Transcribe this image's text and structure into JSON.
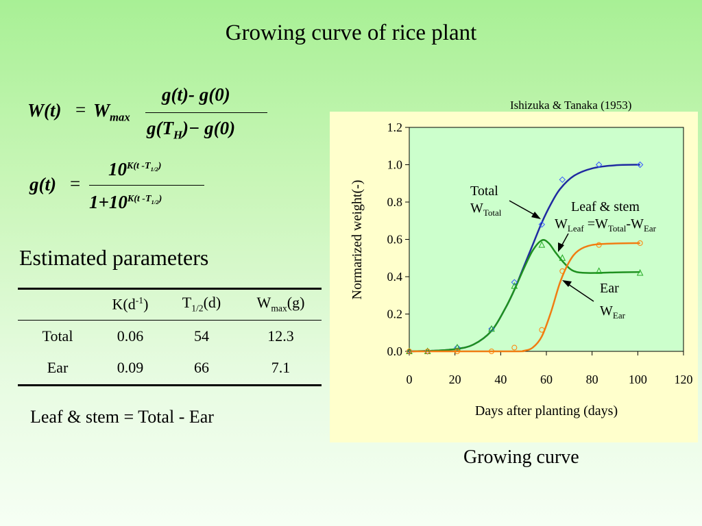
{
  "slide": {
    "title": "Growing curve of rice plant"
  },
  "formulas": {
    "w_lhs": "W(t)",
    "equals": "=",
    "w_max": "W",
    "w_max_sub": "max",
    "w_num": "g(t)- g(0)",
    "w_den_a": "g(T",
    "w_den_sub": "H",
    "w_den_b": ")− g(0)",
    "g_lhs": "g(t)",
    "g_num_base": "10",
    "g_exp": "K(t -T",
    "g_exp_sub": "1/2",
    "g_exp_close": ")",
    "g_den_one": "1+",
    "g_den_base": "10",
    "g_den_exp": "K(t -T",
    "g_den_exp_sub": "1/2",
    "g_den_exp_close": ")"
  },
  "params": {
    "heading": "Estimated parameters",
    "col1_a": "K(d",
    "col1_sup": "-1",
    "col1_b": ")",
    "col2_a": "T",
    "col2_sub": "1/2",
    "col2_b": "(d)",
    "col3_a": "W",
    "col3_sub": "max",
    "col3_b": "(g)",
    "rows": [
      {
        "label": "Total",
        "k": "0.06",
        "t": "54",
        "w": "12.3"
      },
      {
        "label": "Ear",
        "k": "0.09",
        "t": "66",
        "w": "7.1"
      }
    ]
  },
  "leaf_equation": "Leaf & stem = Total - Ear",
  "citation": "Ishizuka & Tanaka (1953)",
  "caption": "Growing curve",
  "colors": {
    "plot_background": "#ccffcc",
    "panel_background": "#ffffcc",
    "total": "#1f2aa0",
    "leaf_stem": "#1f9020",
    "ear": "#f07c12",
    "total_marker": "#3355ff",
    "leaf_marker": "#22aa22",
    "ear_marker": "#ff7f00"
  },
  "chart_data": {
    "type": "line",
    "xlabel": "Days after planting (days)",
    "ylabel": "Normarized weight(-)",
    "xlim": [
      0,
      120
    ],
    "ylim": [
      0.0,
      1.2
    ],
    "x_ticks": [
      "0",
      "20",
      "40",
      "60",
      "80",
      "100",
      "120"
    ],
    "y_ticks": [
      "0.0",
      "0.2",
      "0.4",
      "0.6",
      "0.8",
      "1.0",
      "1.2"
    ],
    "grid": false,
    "legend": "none",
    "series": [
      {
        "name": "Total",
        "color": "#1f2aa0",
        "marker": "diamond",
        "points": [
          [
            0,
            0.0
          ],
          [
            8,
            0.0
          ],
          [
            21,
            0.02
          ],
          [
            36,
            0.12
          ],
          [
            46,
            0.37
          ],
          [
            58,
            0.68
          ],
          [
            67,
            0.92
          ],
          [
            83,
            1.0
          ],
          [
            101,
            1.0
          ]
        ],
        "curve": [
          [
            0,
            0.0
          ],
          [
            10,
            0.003
          ],
          [
            20,
            0.012
          ],
          [
            28,
            0.036
          ],
          [
            36,
            0.11
          ],
          [
            42,
            0.23
          ],
          [
            46,
            0.33
          ],
          [
            50,
            0.45
          ],
          [
            54,
            0.57
          ],
          [
            58,
            0.69
          ],
          [
            62,
            0.79
          ],
          [
            66,
            0.87
          ],
          [
            72,
            0.94
          ],
          [
            80,
            0.98
          ],
          [
            90,
            0.997
          ],
          [
            101,
            1.0
          ]
        ]
      },
      {
        "name": "Leaf & stem",
        "color": "#1f9020",
        "marker": "triangle",
        "points": [
          [
            0,
            0.0
          ],
          [
            8,
            0.0
          ],
          [
            21,
            0.02
          ],
          [
            36,
            0.12
          ],
          [
            46,
            0.35
          ],
          [
            58,
            0.57
          ],
          [
            67,
            0.5
          ],
          [
            83,
            0.43
          ],
          [
            101,
            0.42
          ]
        ],
        "curve": [
          [
            0,
            0.0
          ],
          [
            10,
            0.003
          ],
          [
            20,
            0.012
          ],
          [
            28,
            0.036
          ],
          [
            36,
            0.11
          ],
          [
            42,
            0.23
          ],
          [
            46,
            0.33
          ],
          [
            50,
            0.44
          ],
          [
            54,
            0.54
          ],
          [
            58,
            0.595
          ],
          [
            61,
            0.58
          ],
          [
            64,
            0.53
          ],
          [
            68,
            0.47
          ],
          [
            72,
            0.43
          ],
          [
            78,
            0.42
          ],
          [
            90,
            0.423
          ],
          [
            101,
            0.425
          ]
        ]
      },
      {
        "name": "Ear",
        "color": "#f07c12",
        "marker": "circle",
        "points": [
          [
            0,
            0.0
          ],
          [
            8,
            0.0
          ],
          [
            21,
            0.0
          ],
          [
            36,
            0.0
          ],
          [
            46,
            0.02
          ],
          [
            58,
            0.115
          ],
          [
            67,
            0.43
          ],
          [
            83,
            0.57
          ],
          [
            101,
            0.58
          ]
        ],
        "curve": [
          [
            0,
            0.0
          ],
          [
            45,
            0.0
          ],
          [
            50,
            0.003
          ],
          [
            54,
            0.02
          ],
          [
            58,
            0.08
          ],
          [
            62,
            0.21
          ],
          [
            66,
            0.37
          ],
          [
            70,
            0.48
          ],
          [
            74,
            0.54
          ],
          [
            80,
            0.57
          ],
          [
            90,
            0.578
          ],
          [
            101,
            0.58
          ]
        ]
      }
    ],
    "annotations": {
      "total_a": "Total",
      "total_b": "W",
      "total_sub": "Total",
      "leaf_a": "Leaf & stem",
      "leaf_b1": "W",
      "leaf_sub1": "Leaf",
      "leaf_b2": " =W",
      "leaf_sub2": "Total",
      "leaf_b3": "-W",
      "leaf_sub3": "Ear",
      "ear_a": "Ear",
      "ear_b": "W",
      "ear_sub": "Ear"
    }
  }
}
